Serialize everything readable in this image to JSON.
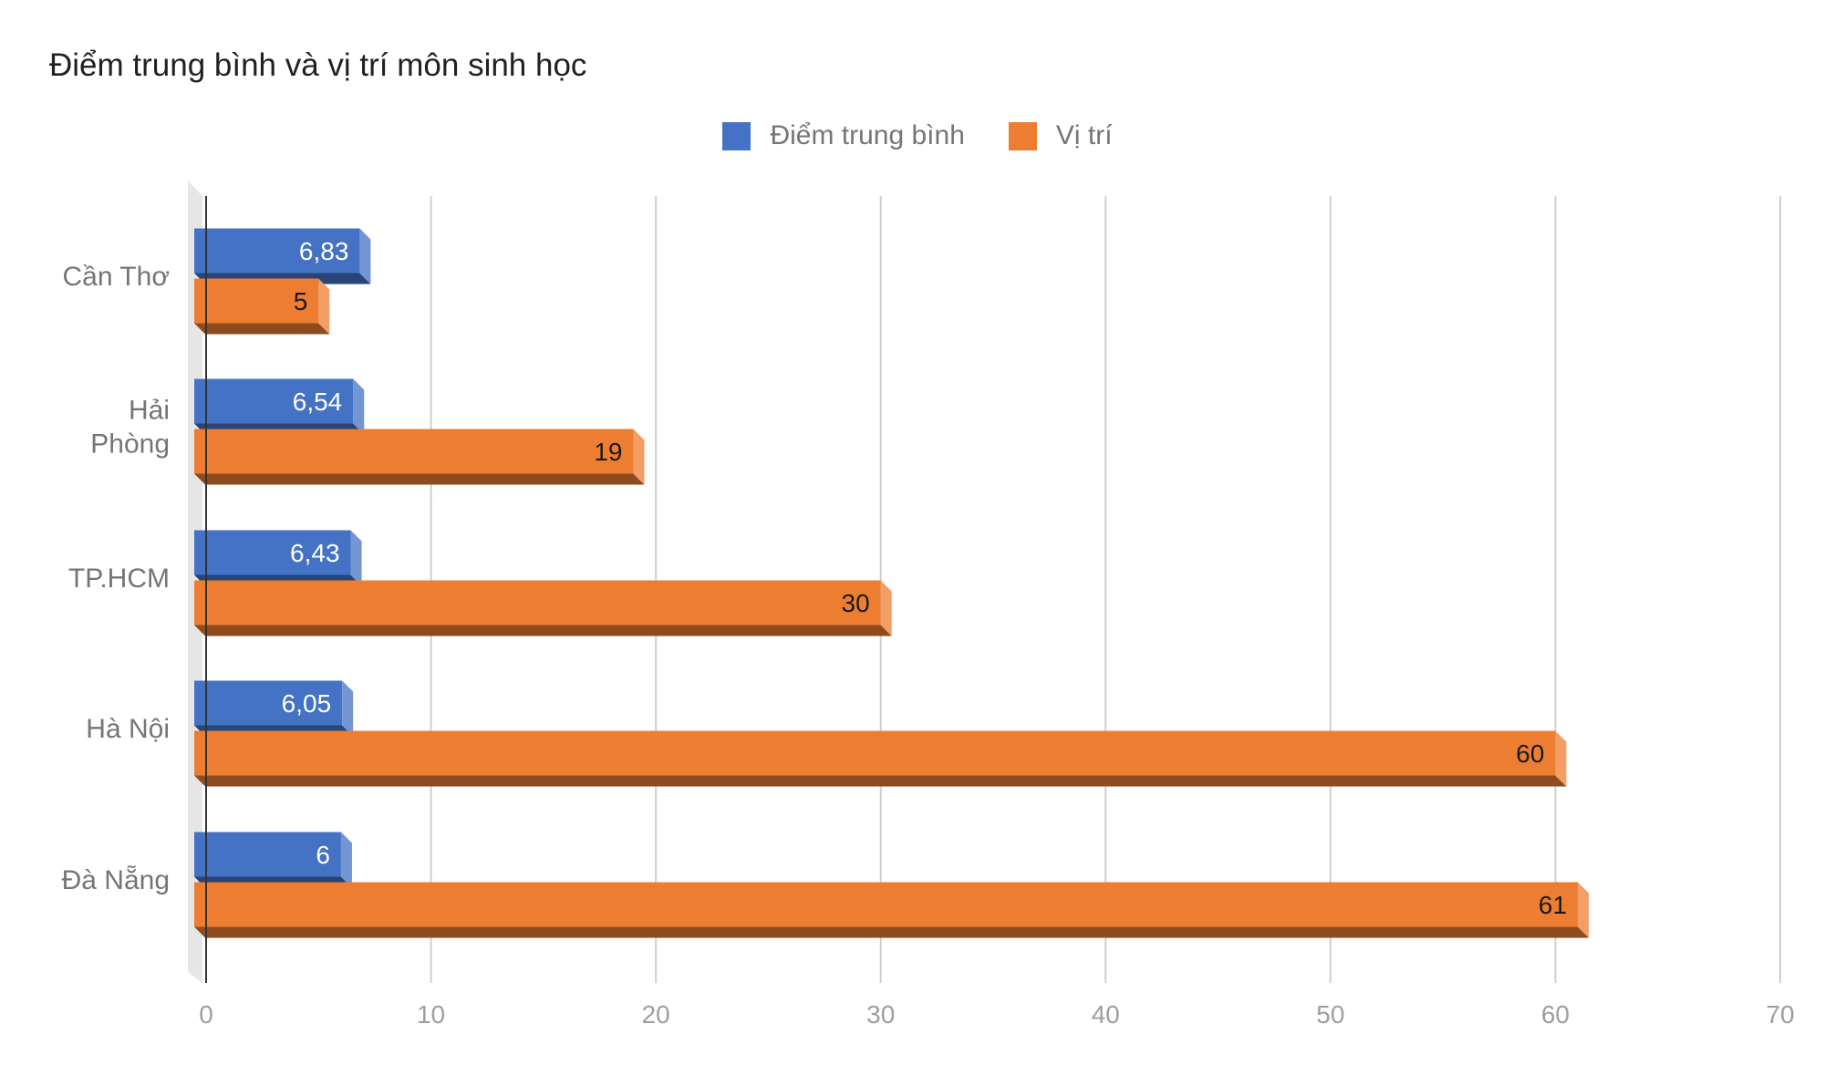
{
  "chart_data": {
    "type": "bar",
    "orientation": "horizontal",
    "title": "Điểm trung bình và vị trí môn sinh học",
    "categories": [
      [
        "Cần Thơ"
      ],
      [
        "Hải",
        "Phòng"
      ],
      [
        "TP.HCM"
      ],
      [
        "Hà Nội"
      ],
      [
        "Đà Nẵng"
      ]
    ],
    "series": [
      {
        "name": "Điểm trung bình",
        "color": "#4472c4",
        "values": [
          6.83,
          6.54,
          6.43,
          6.05,
          6
        ],
        "labels": [
          "6,83",
          "6,54",
          "6,43",
          "6,05",
          "6"
        ],
        "label_color": "#ffffff"
      },
      {
        "name": "Vị trí",
        "color": "#ed7d31",
        "values": [
          5,
          19,
          30,
          60,
          61
        ],
        "labels": [
          "5",
          "19",
          "30",
          "60",
          "61"
        ],
        "label_color": "#1a1a1a"
      }
    ],
    "xlim": [
      0,
      70
    ],
    "ticks": [
      0,
      10,
      20,
      30,
      40,
      50,
      60,
      70
    ],
    "tick_labels": [
      "0",
      "10",
      "20",
      "30",
      "40",
      "50",
      "60",
      "70"
    ],
    "grid": true,
    "legend_position": "top",
    "style": "3d"
  }
}
